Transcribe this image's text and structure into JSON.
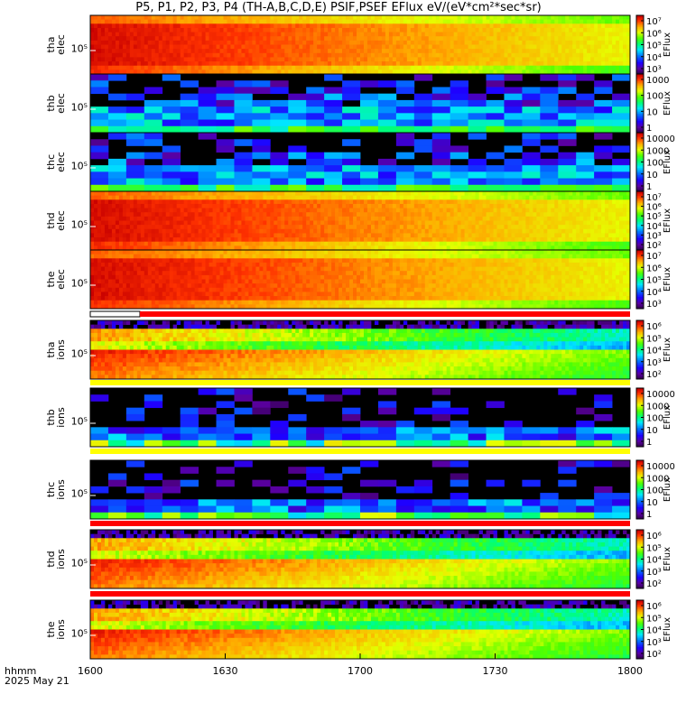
{
  "title": "P5, P1, P2, P3, P4 (TH-A,B,C,D,E) PSIF,PSEF EFlux eV/(eV*cm²*sec*sr)",
  "footer": {
    "line1": "hhmm",
    "line2": "2025 May 21"
  },
  "chart_data": {
    "type": "heatmap",
    "x_ticks": [
      "1600",
      "1630",
      "1700",
      "1730",
      "1800"
    ],
    "x_range": [
      "16:00",
      "18:00"
    ],
    "colorbar_label": "EFlux",
    "panels": [
      {
        "id": "tha_elec",
        "ylabel": [
          "tha",
          "elec"
        ],
        "ytick": "10⁵",
        "cb_ticks": [
          "10⁷",
          "10⁶",
          "10⁵",
          "10⁴",
          "10³"
        ],
        "pattern": "elec_strong",
        "flag": null
      },
      {
        "id": "thb_elec",
        "ylabel": [
          "thb",
          "elec"
        ],
        "ytick": "10⁵",
        "cb_ticks": [
          "1000",
          "100",
          "10",
          "1"
        ],
        "pattern": "sparse_low",
        "flag": null
      },
      {
        "id": "thc_elec",
        "ylabel": [
          "thc",
          "elec"
        ],
        "ytick": "10⁵",
        "cb_ticks": [
          "10000",
          "1000",
          "100",
          "10",
          "1"
        ],
        "pattern": "sparse_mid",
        "flag": null
      },
      {
        "id": "thd_elec",
        "ylabel": [
          "thd",
          "elec"
        ],
        "ytick": "10⁵",
        "cb_ticks": [
          "10⁷",
          "10⁶",
          "10⁵",
          "10⁴",
          "10³",
          "10²"
        ],
        "pattern": "elec_strong",
        "flag": null
      },
      {
        "id": "the_elec",
        "ylabel": [
          "the",
          "elec"
        ],
        "ytick": "10⁵",
        "cb_ticks": [
          "10⁷",
          "10⁶",
          "10⁵",
          "10⁴",
          "10³"
        ],
        "pattern": "elec_strong",
        "flag": "white_red"
      },
      {
        "id": "tha_ions",
        "ylabel": [
          "tha",
          "ions"
        ],
        "ytick": "10⁵",
        "cb_ticks": [
          "10⁶",
          "10⁵",
          "10⁴",
          "10³",
          "10²"
        ],
        "pattern": "ions",
        "flag": "yellow"
      },
      {
        "id": "thb_ions",
        "ylabel": [
          "thb",
          "ions"
        ],
        "ytick": "10⁵",
        "cb_ticks": [
          "10000",
          "1000",
          "100",
          "10",
          "1"
        ],
        "pattern": "sparse_ions",
        "flag": "yellow"
      },
      {
        "id": "thc_ions",
        "ylabel": [
          "thc",
          "ions"
        ],
        "ytick": "10⁵",
        "cb_ticks": [
          "10000",
          "1000",
          "100",
          "10",
          "1"
        ],
        "pattern": "sparse_ions",
        "flag": "red"
      },
      {
        "id": "thd_ions",
        "ylabel": [
          "thd",
          "ions"
        ],
        "ytick": "10⁵",
        "cb_ticks": [
          "10⁶",
          "10⁵",
          "10⁴",
          "10³",
          "10²"
        ],
        "pattern": "ions_thd",
        "flag": "red"
      },
      {
        "id": "the_ions",
        "ylabel": [
          "the",
          "ions"
        ],
        "ytick": "10⁵",
        "cb_ticks": [
          "10⁶",
          "10⁵",
          "10⁴",
          "10³",
          "10²"
        ],
        "pattern": "ions",
        "flag": null
      }
    ]
  },
  "colors": {
    "flag_red": "#ff0000",
    "flag_yellow": "#ffff00",
    "flag_white": "#ffffff",
    "fill": "#000000"
  }
}
